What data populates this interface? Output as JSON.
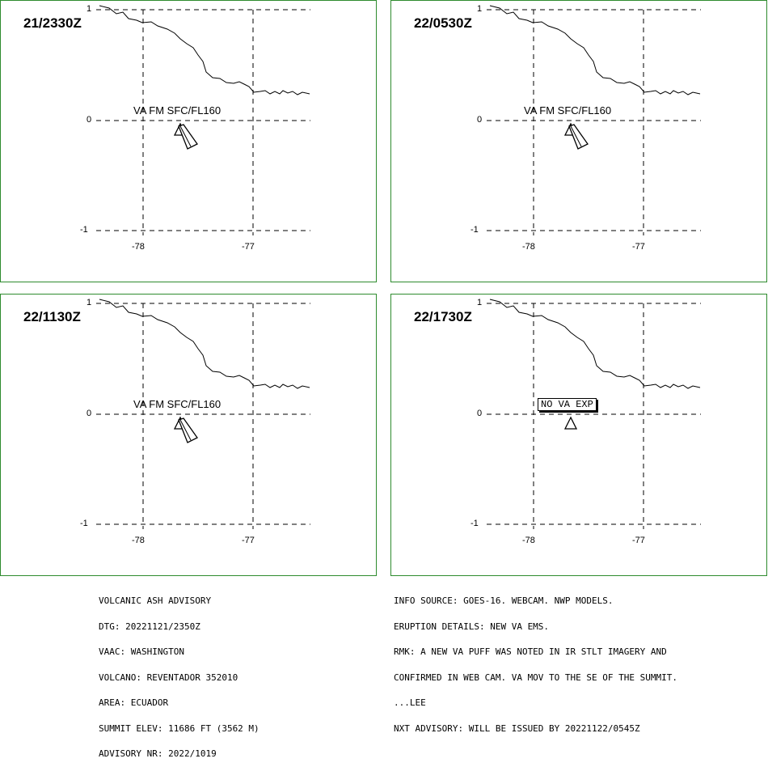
{
  "panels": [
    {
      "time": "21/2330Z",
      "label": "VA FM SFC/FL160",
      "kind": "va"
    },
    {
      "time": "22/0530Z",
      "label": "VA FM SFC/FL160",
      "kind": "va"
    },
    {
      "time": "22/1130Z",
      "label": "VA FM SFC/FL160",
      "kind": "va"
    },
    {
      "time": "22/1730Z",
      "label": "NO VA EXP",
      "kind": "nova"
    }
  ],
  "axes": {
    "lat_ticks": [
      "1",
      "0",
      "-1"
    ],
    "lon_ticks": [
      "-78",
      "-77"
    ]
  },
  "colors": {
    "frame": "#2e8b2e",
    "ink": "#000000"
  },
  "advisory_left": [
    "VOLCANIC ASH ADVISORY",
    "DTG: 20221121/2350Z",
    "VAAC: WASHINGTON",
    "VOLCANO: REVENTADOR 352010",
    "AREA: ECUADOR",
    "SUMMIT ELEV: 11686 FT (3562 M)",
    "ADVISORY NR: 2022/1019"
  ],
  "advisory_right": [
    "INFO SOURCE: GOES-16. WEBCAM. NWP MODELS.",
    "ERUPTION DETAILS: NEW VA EMS.",
    "RMK: A NEW VA PUFF WAS NOTED IN IR STLT IMAGERY AND",
    "CONFIRMED IN WEB CAM. VA MOV TO THE SE OF THE SUMMIT.",
    "...LEE",
    "NXT ADVISORY: WILL BE ISSUED BY 20221122/0545Z"
  ]
}
